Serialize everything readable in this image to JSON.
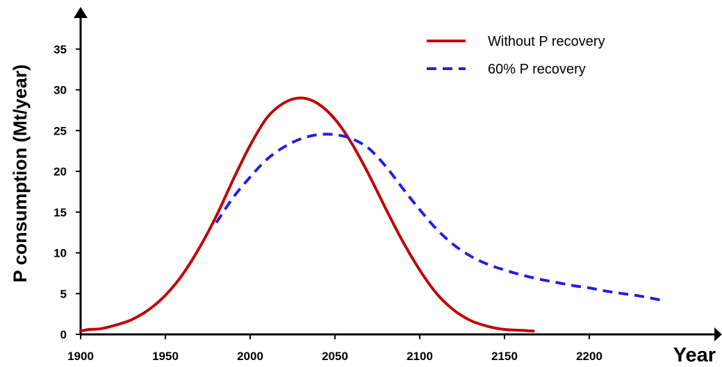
{
  "chart_data": {
    "type": "line",
    "title": "",
    "xlabel": "Year",
    "ylabel": "P consumption (Mt/year)",
    "xlim": [
      1900,
      2250
    ],
    "ylim": [
      0,
      38
    ],
    "x_ticks": [
      1900,
      1950,
      2000,
      2050,
      2100,
      2150,
      2200
    ],
    "y_ticks": [
      0,
      5,
      10,
      15,
      20,
      25,
      30,
      35
    ],
    "grid": false,
    "legend_position": "top-right",
    "series": [
      {
        "name": "Without P recovery",
        "color": "#c00000",
        "style": "solid",
        "points": [
          [
            1900,
            0.4
          ],
          [
            1905,
            0.6
          ],
          [
            1912,
            0.7
          ],
          [
            1920,
            1.1
          ],
          [
            1930,
            1.8
          ],
          [
            1940,
            3.0
          ],
          [
            1950,
            4.8
          ],
          [
            1960,
            7.3
          ],
          [
            1970,
            10.6
          ],
          [
            1980,
            14.5
          ],
          [
            1990,
            19.0
          ],
          [
            2000,
            23.2
          ],
          [
            2010,
            26.6
          ],
          [
            2020,
            28.4
          ],
          [
            2030,
            29.0
          ],
          [
            2040,
            28.3
          ],
          [
            2050,
            26.4
          ],
          [
            2060,
            23.4
          ],
          [
            2070,
            19.6
          ],
          [
            2080,
            15.4
          ],
          [
            2090,
            11.4
          ],
          [
            2100,
            7.9
          ],
          [
            2110,
            5.0
          ],
          [
            2120,
            3.0
          ],
          [
            2130,
            1.7
          ],
          [
            2140,
            1.0
          ],
          [
            2150,
            0.6
          ],
          [
            2160,
            0.5
          ],
          [
            2167,
            0.4
          ]
        ]
      },
      {
        "name": "60% P recovery",
        "color": "#1f1fe6",
        "style": "dashed",
        "points": [
          [
            1980,
            13.7
          ],
          [
            1990,
            16.8
          ],
          [
            2000,
            19.3
          ],
          [
            2010,
            21.5
          ],
          [
            2020,
            23.0
          ],
          [
            2030,
            24.0
          ],
          [
            2040,
            24.5
          ],
          [
            2050,
            24.5
          ],
          [
            2060,
            24.0
          ],
          [
            2070,
            22.8
          ],
          [
            2080,
            20.6
          ],
          [
            2090,
            17.9
          ],
          [
            2100,
            15.3
          ],
          [
            2110,
            12.9
          ],
          [
            2120,
            11.0
          ],
          [
            2130,
            9.6
          ],
          [
            2140,
            8.6
          ],
          [
            2150,
            7.9
          ],
          [
            2160,
            7.3
          ],
          [
            2170,
            6.8
          ],
          [
            2180,
            6.4
          ],
          [
            2190,
            6.0
          ],
          [
            2200,
            5.7
          ],
          [
            2210,
            5.3
          ],
          [
            2220,
            5.0
          ],
          [
            2230,
            4.7
          ],
          [
            2240,
            4.3
          ],
          [
            2245,
            4.1
          ]
        ]
      }
    ]
  }
}
